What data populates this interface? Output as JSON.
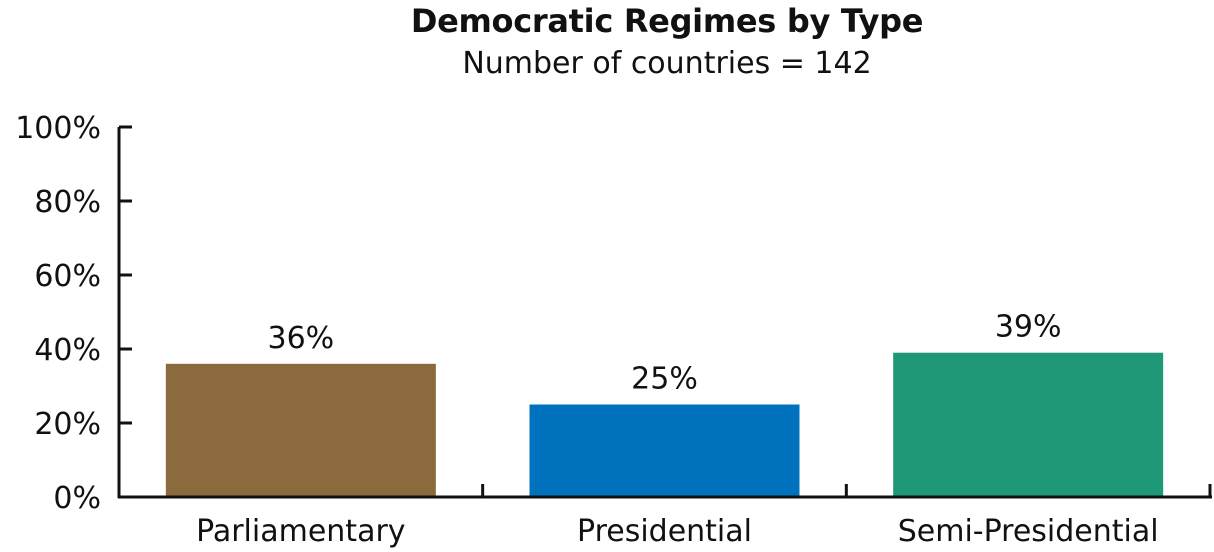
{
  "chart_data": {
    "type": "bar",
    "title": "Democratic Regimes by Type",
    "subtitle": "Number of countries = 142",
    "xlabel": "",
    "ylabel": "",
    "categories": [
      "Parliamentary",
      "Presidential",
      "Semi-Presidential"
    ],
    "values": [
      36,
      25,
      39
    ],
    "value_labels": [
      "36%",
      "25%",
      "39%"
    ],
    "colors": [
      "#8b6a3e",
      "#0072bd",
      "#1f9877"
    ],
    "ylim": [
      0,
      100
    ],
    "yticks": [
      0,
      20,
      40,
      60,
      80,
      100
    ],
    "ytick_labels": [
      "0%",
      "20%",
      "40%",
      "60%",
      "80%",
      "100%"
    ],
    "grid": false,
    "legend": "none"
  }
}
